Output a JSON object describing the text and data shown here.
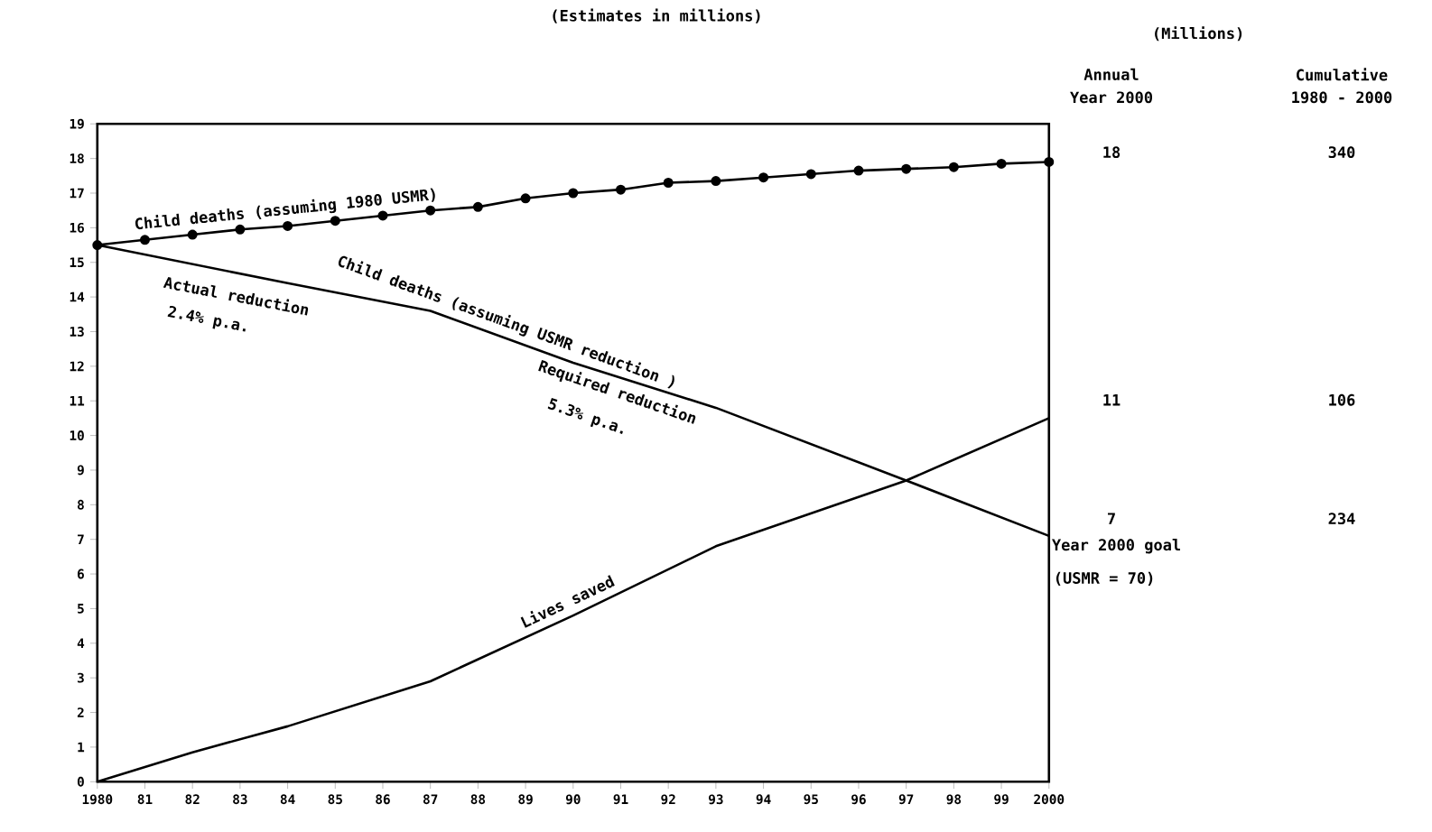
{
  "chart_data": {
    "type": "line",
    "title": "(Estimates in millions)",
    "xlim": [
      1980,
      2000
    ],
    "ylim": [
      0,
      19
    ],
    "xticks": [
      {
        "value": 1980,
        "label": "1980"
      },
      {
        "value": 1981,
        "label": "81"
      },
      {
        "value": 1982,
        "label": "82"
      },
      {
        "value": 1983,
        "label": "83"
      },
      {
        "value": 1984,
        "label": "84"
      },
      {
        "value": 1985,
        "label": "85"
      },
      {
        "value": 1986,
        "label": "86"
      },
      {
        "value": 1987,
        "label": "87"
      },
      {
        "value": 1988,
        "label": "88"
      },
      {
        "value": 1989,
        "label": "89"
      },
      {
        "value": 1990,
        "label": "90"
      },
      {
        "value": 1991,
        "label": "91"
      },
      {
        "value": 1992,
        "label": "92"
      },
      {
        "value": 1993,
        "label": "93"
      },
      {
        "value": 1994,
        "label": "94"
      },
      {
        "value": 1995,
        "label": "95"
      },
      {
        "value": 1996,
        "label": "96"
      },
      {
        "value": 1997,
        "label": "97"
      },
      {
        "value": 1998,
        "label": "98"
      },
      {
        "value": 1999,
        "label": "99"
      },
      {
        "value": 2000,
        "label": "2000"
      }
    ],
    "yticks": [
      0,
      1,
      2,
      3,
      4,
      5,
      6,
      7,
      8,
      9,
      10,
      11,
      12,
      13,
      14,
      15,
      16,
      17,
      18,
      19
    ],
    "series": [
      {
        "name": "Child deaths (assuming 1980 USMR)",
        "color": "#000000",
        "marker": "circle",
        "x": [
          1980,
          1981,
          1982,
          1983,
          1984,
          1985,
          1986,
          1987,
          1988,
          1989,
          1990,
          1991,
          1992,
          1993,
          1994,
          1995,
          1996,
          1997,
          1998,
          1999,
          2000
        ],
        "values": [
          15.5,
          15.65,
          15.8,
          15.95,
          16.05,
          16.2,
          16.35,
          16.5,
          16.6,
          16.85,
          17.0,
          17.1,
          17.3,
          17.35,
          17.45,
          17.55,
          17.65,
          17.7,
          17.75,
          17.85,
          17.9
        ]
      },
      {
        "name": "Child deaths (assuming USMR reduction )",
        "color": "#000000",
        "marker": "none",
        "x": [
          1980,
          1984,
          1987,
          1990,
          1993,
          1997,
          2000
        ],
        "values": [
          15.5,
          14.4,
          13.6,
          12.1,
          10.8,
          8.7,
          7.1
        ]
      },
      {
        "name": "Lives saved",
        "color": "#000000",
        "marker": "none",
        "x": [
          1980,
          1982,
          1984,
          1987,
          1990,
          1993,
          1997,
          2000
        ],
        "values": [
          0,
          0.85,
          1.6,
          2.9,
          4.8,
          6.8,
          8.7,
          10.5
        ]
      }
    ],
    "annotations": [
      "(Millions)",
      "Annual",
      "Year 2000",
      "Cumulative",
      "1980 - 2000",
      "18",
      "340",
      "11",
      "106",
      "7",
      "234",
      "Actual reduction",
      "2.4% p.a.",
      "Required reduction",
      "5.3% p.a.",
      {
        "text": "Year 2000 goal",
        "x": 2000,
        "y": 7.1
      },
      "(USMR = 70)"
    ]
  }
}
